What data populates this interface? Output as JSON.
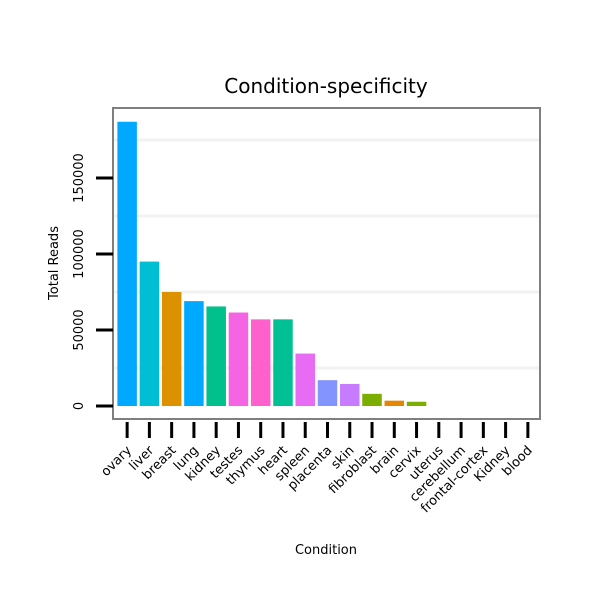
{
  "chart_data": {
    "type": "bar",
    "title": "Condition-specificity",
    "xlabel": "Condition",
    "ylabel": "Total Reads",
    "ylim": [
      -10000,
      193000
    ],
    "yticks": [
      0,
      50000,
      100000,
      150000
    ],
    "ytick_labels": [
      "0",
      "50000",
      "100000",
      "150000"
    ],
    "grid": true,
    "categories": [
      "ovary",
      "liver",
      "breast",
      "lung",
      "kidney",
      "testes",
      "thymus",
      "heart",
      "spleen",
      "placenta",
      "skin",
      "fibroblast",
      "brain",
      "cervix",
      "uterus",
      "cerebellum",
      "frontal-cortex",
      "Kidney",
      "blood"
    ],
    "values": [
      187000,
      95000,
      75000,
      69000,
      65500,
      61500,
      57000,
      57000,
      34500,
      17000,
      14500,
      8000,
      3500,
      2800,
      0,
      0,
      0,
      0,
      0
    ],
    "colors": [
      "#00A9FF",
      "#00BFD4",
      "#DC9200",
      "#00A9FF",
      "#00C08B",
      "#F564E3",
      "#FF61CC",
      "#00C094",
      "#E76BF3",
      "#8494FF",
      "#C77CFF",
      "#7CAE00",
      "#E58700",
      "#7CAE00",
      "#00A9FF",
      "#00A9FF",
      "#00A9FF",
      "#00A9FF",
      "#00A9FF"
    ]
  }
}
